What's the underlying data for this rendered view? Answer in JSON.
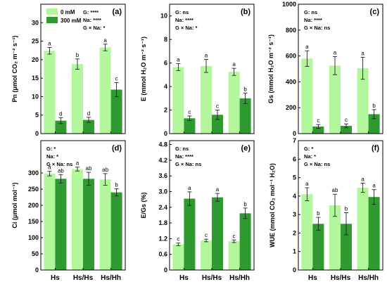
{
  "colors": {
    "mM0": "#b3f79c",
    "mM300": "#2f9a2f"
  },
  "legend": {
    "items": [
      "0 mM",
      "300 mM"
    ]
  },
  "chart_data": [
    {
      "type": "bar",
      "panel": "(a)",
      "ylabel": "Pn (μmol CO₂ m⁻² s⁻¹)",
      "ylim": [
        0,
        35
      ],
      "yticks": [
        0,
        5,
        10,
        15,
        20,
        25,
        30
      ],
      "categories": [
        "Hs",
        "Hs/Hs",
        "Hs/Hh"
      ],
      "series": [
        {
          "name": "0 mM",
          "values": [
            22.4,
            18.8,
            23.3
          ],
          "errors": [
            0.9,
            1.4,
            0.9
          ],
          "letters": [
            "a",
            "b",
            "a"
          ]
        },
        {
          "name": "300 mM",
          "values": [
            3.5,
            3.7,
            11.9
          ],
          "errors": [
            0.8,
            0.7,
            1.9
          ],
          "letters": [
            "d",
            "d",
            "c"
          ]
        }
      ],
      "stats": [
        "G: ****",
        "Na: ****",
        "G × Na: *"
      ]
    },
    {
      "type": "bar",
      "panel": "(b)",
      "ylabel": "E (mmol H₂O m⁻² s⁻¹)",
      "ylim": [
        0,
        11
      ],
      "yticks": [
        0,
        2,
        4,
        6,
        8,
        10
      ],
      "categories": [
        "Hs",
        "Hs/Hs",
        "Hs/Hh"
      ],
      "series": [
        {
          "name": "0 mM",
          "values": [
            5.65,
            5.75,
            5.25
          ],
          "errors": [
            0.3,
            0.55,
            0.3
          ],
          "letters": [
            "a",
            "a",
            "a"
          ]
        },
        {
          "name": "300 mM",
          "values": [
            1.3,
            1.6,
            3.0
          ],
          "errors": [
            0.2,
            0.4,
            0.45
          ],
          "letters": [
            "c",
            "c",
            "b"
          ]
        }
      ],
      "stats": [
        "G: ns",
        "Na: ****",
        "G × Na: *"
      ]
    },
    {
      "type": "bar",
      "panel": "(c)",
      "ylabel": "Gs (mmol H₂O m⁻² s⁻¹)",
      "ylim": [
        0,
        1000
      ],
      "yticks": [
        0,
        200,
        400,
        600,
        800,
        1000
      ],
      "categories": [
        "Hs",
        "Hs/Hs",
        "Hs/Hh"
      ],
      "series": [
        {
          "name": "0 mM",
          "values": [
            580,
            525,
            505
          ],
          "errors": [
            60,
            70,
            85
          ],
          "letters": [
            "a",
            "a",
            "a"
          ]
        },
        {
          "name": "300 mM",
          "values": [
            55,
            60,
            150
          ],
          "errors": [
            15,
            15,
            35
          ],
          "letters": [
            "c",
            "c",
            "b"
          ]
        }
      ],
      "stats": [
        "G: ns",
        "Na: ****",
        "G × Na: ns"
      ]
    },
    {
      "type": "bar",
      "panel": "(d)",
      "ylabel": "Ci (μmol mol⁻¹)",
      "ylim": [
        0,
        400
      ],
      "yticks": [
        0,
        50,
        100,
        150,
        200,
        250,
        300
      ],
      "categories": [
        "Hs",
        "Hs/Hs",
        "Hs/Hh"
      ],
      "series": [
        {
          "name": "0 mM",
          "values": [
            298,
            312,
            280
          ],
          "errors": [
            7,
            6,
            18
          ],
          "letters": [
            "a",
            "a",
            "ab"
          ]
        },
        {
          "name": "300 mM",
          "values": [
            282,
            282,
            240
          ],
          "errors": [
            13,
            20,
            11
          ],
          "letters": [
            "ab",
            "ab",
            "b"
          ]
        }
      ],
      "stats": [
        "G: *",
        "Na: *",
        "G × Na: ns"
      ]
    },
    {
      "type": "bar",
      "panel": "(e)",
      "ylabel": "E/Gs (%)",
      "ylim": [
        0,
        4.95
      ],
      "yticks": [
        0,
        0.6,
        1.2,
        1.8,
        2.4,
        3.0,
        3.6,
        4.2,
        4.8
      ],
      "ytick_labels": [
        "0",
        "0.6",
        "1.2",
        "1.8",
        "2.4",
        "3.0",
        "3.6",
        "4.2",
        "4.8"
      ],
      "categories": [
        "Hs",
        "Hs/Hs",
        "Hs/Hh"
      ],
      "series": [
        {
          "name": "0 mM",
          "values": [
            0.98,
            1.13,
            1.1
          ],
          "errors": [
            0.05,
            0.05,
            0.05
          ],
          "letters": [
            "c",
            "c",
            "c"
          ]
        },
        {
          "name": "300 mM",
          "values": [
            2.73,
            2.78,
            2.17
          ],
          "errors": [
            0.26,
            0.15,
            0.2
          ],
          "letters": [
            "a",
            "a",
            "b"
          ]
        }
      ],
      "stats": [
        "G: ns",
        "Na: ****",
        "G × Na: ns"
      ]
    },
    {
      "type": "bar",
      "panel": "(f)",
      "ylabel": "WUE (mmol CO₂ mol⁻¹ H₂O)",
      "ylim": [
        0,
        7
      ],
      "yticks": [
        0,
        1,
        2,
        3,
        4,
        5,
        6,
        7
      ],
      "categories": [
        "Hs",
        "Hs/Hs",
        "Hs/Hh"
      ],
      "series": [
        {
          "name": "0 mM",
          "values": [
            4.1,
            3.5,
            4.45
          ],
          "errors": [
            0.35,
            0.6,
            0.25
          ],
          "letters": [
            "a",
            "ab",
            "a"
          ]
        },
        {
          "name": "300 mM",
          "values": [
            2.5,
            2.5,
            3.95
          ],
          "errors": [
            0.35,
            0.6,
            0.4
          ],
          "letters": [
            "b",
            "b",
            "a"
          ]
        }
      ],
      "stats": [
        "G: *",
        "Na: *",
        "G × Na: ns"
      ]
    }
  ]
}
